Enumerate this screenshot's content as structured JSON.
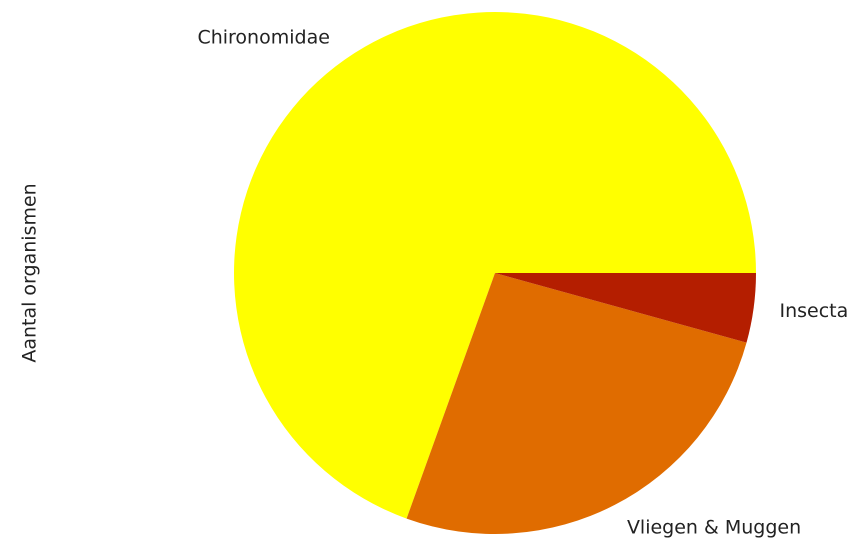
{
  "chart_data": {
    "type": "pie",
    "ylabel": "Aantal organismen",
    "categories": [
      "Chironomidae",
      "Vliegen & Muggen",
      "Insecta"
    ],
    "values": [
      69.5,
      26.2,
      4.3
    ],
    "colors": [
      "#ffff00",
      "#e06c00",
      "#b41e00"
    ]
  }
}
